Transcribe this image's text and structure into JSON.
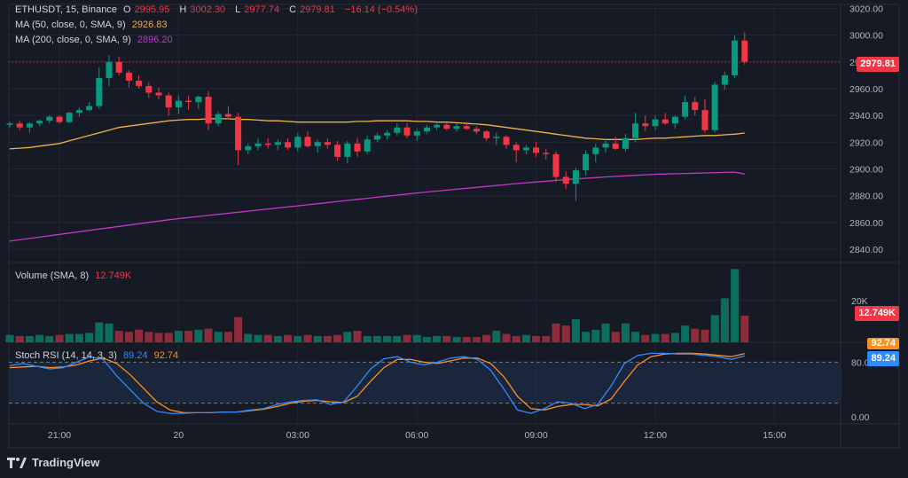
{
  "symbol_line": {
    "symbol": "ETHUSDT, 15, Binance",
    "open_label": "O",
    "open": "2995.95",
    "high_label": "H",
    "high": "3002.30",
    "low_label": "L",
    "low": "2977.74",
    "close_label": "C",
    "close": "2979.81",
    "change": "−16.14 (−0.54%)"
  },
  "ma50": {
    "label": "MA (50, close, 0, SMA, 9)",
    "value": "2926.83",
    "color": "#f0b14a"
  },
  "ma200": {
    "label": "MA (200, close, 0, SMA, 9)",
    "value": "2896.20",
    "color": "#c238c8"
  },
  "price_tag": {
    "value": "2979.81",
    "color": "#f23645"
  },
  "volume": {
    "label": "Volume (SMA, 8)",
    "value": "12.749K",
    "tag": "12.749K",
    "tick": "20K"
  },
  "stoch": {
    "label": "Stoch RSI (14, 14, 3, 3)",
    "k_value": "89.24",
    "d_value": "92.74",
    "k_tag": "89.24",
    "d_tag": "92.74",
    "k_color": "#2f8bff",
    "d_color": "#ff8f1f",
    "ticks": [
      "80.00",
      "0.00"
    ]
  },
  "footer": {
    "brand": "TradingView"
  },
  "colors": {
    "up": "#089981",
    "down": "#f23645",
    "bg": "#161a25",
    "grid": "#232734"
  },
  "chart_data": {
    "type": "candlestick",
    "price_ticks": [
      3020,
      3000,
      2980,
      2960,
      2940,
      2920,
      2900,
      2880,
      2860,
      2840
    ],
    "price_tick_labels": [
      "3020.00",
      "3000.00",
      "2980.00",
      "2960.00",
      "2940.00",
      "2920.00",
      "2900.00",
      "2880.00",
      "2860.00",
      "2840.00"
    ],
    "ylim": [
      2830,
      3023
    ],
    "x_labels": [
      {
        "bar": 5,
        "text": "21:00"
      },
      {
        "bar": 17,
        "text": "20"
      },
      {
        "bar": 29,
        "text": "03:00"
      },
      {
        "bar": 41,
        "text": "06:00"
      },
      {
        "bar": 53,
        "text": "09:00"
      },
      {
        "bar": 65,
        "text": "12:00"
      },
      {
        "bar": 77,
        "text": "15:00"
      }
    ],
    "candles": [
      [
        2933,
        2935,
        2931,
        2934
      ],
      [
        2934,
        2936,
        2929,
        2931
      ],
      [
        2931,
        2935,
        2927,
        2934
      ],
      [
        2934,
        2937,
        2932,
        2936
      ],
      [
        2936,
        2940,
        2934,
        2939
      ],
      [
        2939,
        2940,
        2934,
        2935
      ],
      [
        2935,
        2943,
        2934,
        2942
      ],
      [
        2942,
        2946,
        2939,
        2944
      ],
      [
        2944,
        2950,
        2943,
        2947
      ],
      [
        2947,
        2976,
        2945,
        2968
      ],
      [
        2968,
        2985,
        2962,
        2980
      ],
      [
        2980,
        2984,
        2970,
        2972
      ],
      [
        2972,
        2974,
        2961,
        2966
      ],
      [
        2966,
        2970,
        2960,
        2962
      ],
      [
        2962,
        2965,
        2953,
        2957
      ],
      [
        2957,
        2961,
        2952,
        2955
      ],
      [
        2955,
        2957,
        2940,
        2946
      ],
      [
        2946,
        2955,
        2941,
        2951
      ],
      [
        2951,
        2955,
        2944,
        2950
      ],
      [
        2950,
        2955,
        2945,
        2954
      ],
      [
        2954,
        2958,
        2929,
        2934
      ],
      [
        2934,
        2943,
        2932,
        2941
      ],
      [
        2941,
        2947,
        2937,
        2939
      ],
      [
        2939,
        2942,
        2903,
        2914
      ],
      [
        2914,
        2919,
        2911,
        2917
      ],
      [
        2917,
        2923,
        2914,
        2919
      ],
      [
        2919,
        2923,
        2915,
        2918
      ],
      [
        2918,
        2922,
        2914,
        2920
      ],
      [
        2920,
        2923,
        2914,
        2916
      ],
      [
        2916,
        2927,
        2913,
        2924
      ],
      [
        2924,
        2928,
        2916,
        2917
      ],
      [
        2917,
        2922,
        2912,
        2920
      ],
      [
        2920,
        2923,
        2915,
        2918
      ],
      [
        2918,
        2921,
        2906,
        2909
      ],
      [
        2909,
        2921,
        2904,
        2919
      ],
      [
        2919,
        2923,
        2909,
        2913
      ],
      [
        2913,
        2925,
        2911,
        2922
      ],
      [
        2922,
        2927,
        2920,
        2925
      ],
      [
        2925,
        2929,
        2922,
        2927
      ],
      [
        2927,
        2934,
        2925,
        2931
      ],
      [
        2931,
        2934,
        2923,
        2925
      ],
      [
        2925,
        2930,
        2921,
        2928
      ],
      [
        2928,
        2933,
        2926,
        2931
      ],
      [
        2931,
        2934,
        2929,
        2933
      ],
      [
        2933,
        2935,
        2929,
        2930
      ],
      [
        2930,
        2934,
        2928,
        2932
      ],
      [
        2932,
        2935,
        2929,
        2930
      ],
      [
        2930,
        2932,
        2926,
        2928
      ],
      [
        2928,
        2929,
        2921,
        2923
      ],
      [
        2923,
        2927,
        2918,
        2924
      ],
      [
        2924,
        2925,
        2915,
        2918
      ],
      [
        2918,
        2920,
        2905,
        2914
      ],
      [
        2914,
        2918,
        2911,
        2916
      ],
      [
        2916,
        2920,
        2909,
        2912
      ],
      [
        2912,
        2915,
        2907,
        2911
      ],
      [
        2911,
        2913,
        2890,
        2894
      ],
      [
        2894,
        2898,
        2885,
        2889
      ],
      [
        2889,
        2901,
        2876,
        2899
      ],
      [
        2899,
        2914,
        2895,
        2911
      ],
      [
        2911,
        2919,
        2905,
        2916
      ],
      [
        2916,
        2922,
        2912,
        2919
      ],
      [
        2919,
        2924,
        2914,
        2915
      ],
      [
        2915,
        2926,
        2913,
        2923
      ],
      [
        2923,
        2942,
        2920,
        2934
      ],
      [
        2934,
        2940,
        2928,
        2932
      ],
      [
        2932,
        2940,
        2929,
        2937
      ],
      [
        2937,
        2942,
        2933,
        2934
      ],
      [
        2934,
        2940,
        2930,
        2939
      ],
      [
        2939,
        2955,
        2937,
        2950
      ],
      [
        2950,
        2954,
        2940,
        2944
      ],
      [
        2944,
        2952,
        2927,
        2929
      ],
      [
        2929,
        2965,
        2927,
        2963
      ],
      [
        2963,
        2973,
        2959,
        2970
      ],
      [
        2970,
        3000,
        2968,
        2996
      ],
      [
        2996,
        3002,
        2978,
        2980
      ]
    ],
    "ma50": [
      2915,
      2915.5,
      2916,
      2917,
      2918,
      2919,
      2921,
      2923,
      2925,
      2927,
      2929,
      2931,
      2932,
      2933,
      2934,
      2935,
      2936,
      2936.5,
      2937,
      2937,
      2937.5,
      2937.5,
      2937.5,
      2937,
      2937,
      2936.5,
      2936,
      2936,
      2935.5,
      2935,
      2935,
      2935,
      2935,
      2935,
      2935,
      2935.5,
      2935.5,
      2936,
      2936,
      2936,
      2936,
      2935.5,
      2935.5,
      2935,
      2935,
      2934.5,
      2934,
      2933.5,
      2933,
      2932,
      2931,
      2930,
      2929,
      2928,
      2927,
      2926,
      2925,
      2924,
      2923,
      2922.5,
      2922,
      2922,
      2922,
      2922,
      2922.5,
      2923,
      2923,
      2923.5,
      2924,
      2924.5,
      2925,
      2925,
      2925.5,
      2926,
      2926.83
    ],
    "ma200": [
      2846,
      2847,
      2848,
      2849,
      2850,
      2851,
      2852,
      2853,
      2854,
      2855,
      2856,
      2857,
      2858,
      2859,
      2860,
      2861,
      2862,
      2862.8,
      2863.6,
      2864.4,
      2865.2,
      2866,
      2866.8,
      2867.6,
      2868.4,
      2869.2,
      2870,
      2870.8,
      2871.6,
      2872.4,
      2873.2,
      2874,
      2874.8,
      2875.6,
      2876.4,
      2877.2,
      2878,
      2878.8,
      2879.6,
      2880.4,
      2881.2,
      2882,
      2882.7,
      2883.4,
      2884.1,
      2884.8,
      2885.5,
      2886.2,
      2886.9,
      2887.6,
      2888.3,
      2889,
      2889.6,
      2890.2,
      2890.8,
      2891.4,
      2892,
      2892.5,
      2893,
      2893.5,
      2894,
      2894.4,
      2894.8,
      2895.2,
      2895.6,
      2896,
      2896.2,
      2896.4,
      2896.6,
      2896.8,
      2897,
      2897.2,
      2897.4,
      2897.6,
      2896.2
    ],
    "volume_k": [
      3.5,
      3,
      3,
      3.5,
      3,
      3.5,
      4,
      4,
      4.5,
      9.5,
      9,
      5.5,
      5,
      6,
      5,
      4.5,
      4.5,
      5.5,
      5.5,
      6,
      6.5,
      5,
      5,
      12,
      4,
      3.5,
      3.5,
      3,
      3.5,
      3,
      3.5,
      3,
      3,
      3.5,
      5,
      5.5,
      3,
      3,
      3,
      3,
      3.5,
      3.5,
      2.5,
      3,
      3,
      2.5,
      2.5,
      2.5,
      3.5,
      5.5,
      4,
      3,
      3.5,
      3,
      3,
      9,
      8,
      11,
      5,
      6,
      9,
      5,
      9,
      5,
      3.5,
      4,
      4,
      4.5,
      8,
      6.5,
      6,
      13,
      21,
      35,
      12.749
    ],
    "vol_max_k": 36,
    "stoch_k": [
      75,
      78,
      74,
      70,
      72,
      80,
      88,
      84,
      60,
      40,
      20,
      8,
      5,
      5,
      6,
      6,
      7,
      7,
      10,
      12,
      18,
      22,
      24,
      25,
      18,
      22,
      45,
      70,
      85,
      88,
      80,
      76,
      80,
      86,
      88,
      84,
      68,
      40,
      10,
      5,
      12,
      22,
      20,
      12,
      18,
      45,
      78,
      90,
      93,
      93,
      92,
      92,
      90,
      88,
      84,
      89.24
    ],
    "stoch_d": [
      72,
      73,
      74,
      72,
      73,
      76,
      82,
      86,
      78,
      62,
      42,
      22,
      10,
      6,
      6,
      6,
      7,
      7,
      9,
      11,
      15,
      20,
      23,
      24,
      22,
      21,
      30,
      52,
      72,
      84,
      84,
      80,
      78,
      82,
      86,
      86,
      78,
      58,
      30,
      12,
      10,
      15,
      18,
      18,
      16,
      26,
      52,
      76,
      88,
      92,
      93,
      93,
      92,
      90,
      88,
      92.74
    ],
    "stoch_ylim": [
      0,
      100
    ],
    "stoch_bands": [
      80,
      20
    ]
  }
}
